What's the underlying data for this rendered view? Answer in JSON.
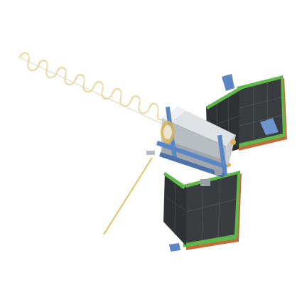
{
  "image": {
    "subject": "satellite",
    "background": "#ffffff",
    "colors": {
      "bus_body": "#c9cdd2",
      "bus_highlight": "#eef0f2",
      "bus_shadow": "#8f959c",
      "cell": "#3a3d40",
      "cell_grid": "#55595d",
      "panel_edge": "#5fb84a",
      "panel_back": "#c46a3a",
      "bracket_blue": "#5a86c4",
      "antenna_coil": "#e8d49a",
      "antenna_rod": "#d8c060",
      "gold_fitting": "#d9b45a"
    }
  }
}
